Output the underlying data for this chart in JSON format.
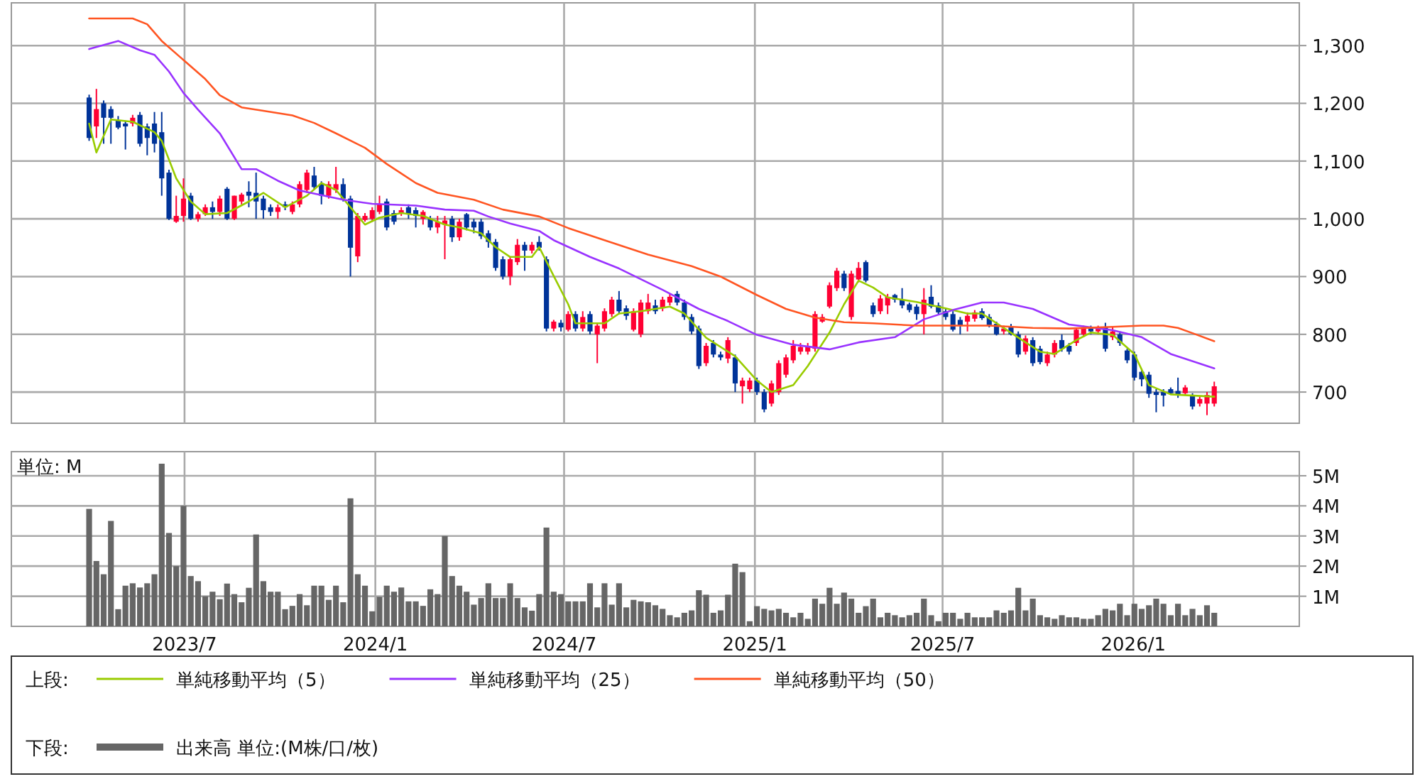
{
  "chart_data": [
    {
      "type": "candlestick",
      "tick_labels": "y",
      "grid": true,
      "legend": "bottom",
      "legend_title": "上段:",
      "xlim": [
        "2023-01-15",
        "2026-06-10"
      ],
      "xticks": [
        {
          "value": "2023-07-01",
          "label": null
        },
        {
          "value": "2024-01-01",
          "label": null
        },
        {
          "value": "2024-07-01",
          "label": null
        },
        {
          "value": "2025-01-01",
          "label": null
        },
        {
          "value": "2025-07-01",
          "label": null
        },
        {
          "value": "2026-01-01",
          "label": null
        }
      ],
      "ylim": [
        646,
        1374
      ],
      "yticks": [
        700,
        800,
        900,
        {
          "value": 1000,
          "label": "1,000"
        },
        {
          "value": 1100,
          "label": "1,100"
        },
        {
          "value": 1200,
          "label": "1,200"
        },
        {
          "value": 1300,
          "label": "1,300"
        }
      ],
      "x": [
        "2023-03-31",
        "2023-04-07",
        "2023-04-14",
        "2023-04-21",
        "2023-04-28",
        "2023-05-05",
        "2023-05-12",
        "2023-05-19",
        "2023-05-26",
        "2023-06-02",
        "2023-06-09",
        "2023-06-16",
        "2023-06-23",
        "2023-06-30",
        "2023-07-07",
        "2023-07-14",
        "2023-07-21",
        "2023-07-28",
        "2023-08-04",
        "2023-08-11",
        "2023-08-18",
        "2023-08-25",
        "2023-09-01",
        "2023-09-08",
        "2023-09-15",
        "2023-09-22",
        "2023-09-29",
        "2023-10-06",
        "2023-10-13",
        "2023-10-20",
        "2023-10-27",
        "2023-11-03",
        "2023-11-10",
        "2023-11-17",
        "2023-11-24",
        "2023-12-01",
        "2023-12-08",
        "2023-12-15",
        "2023-12-22",
        "2023-12-29",
        "2024-01-05",
        "2024-01-12",
        "2024-01-19",
        "2024-01-26",
        "2024-02-02",
        "2024-02-09",
        "2024-02-16",
        "2024-02-23",
        "2024-03-01",
        "2024-03-08",
        "2024-03-15",
        "2024-03-22",
        "2024-03-29",
        "2024-04-05",
        "2024-04-12",
        "2024-04-19",
        "2024-04-26",
        "2024-05-03",
        "2024-05-10",
        "2024-05-17",
        "2024-05-24",
        "2024-05-31",
        "2024-06-07",
        "2024-06-14",
        "2024-06-21",
        "2024-06-28",
        "2024-07-05",
        "2024-07-12",
        "2024-07-19",
        "2024-07-26",
        "2024-08-02",
        "2024-08-09",
        "2024-08-16",
        "2024-08-23",
        "2024-08-30",
        "2024-09-06",
        "2024-09-13",
        "2024-09-20",
        "2024-09-27",
        "2024-10-04",
        "2024-10-11",
        "2024-10-18",
        "2024-10-25",
        "2024-11-01",
        "2024-11-08",
        "2024-11-15",
        "2024-11-22",
        "2024-11-29",
        "2024-12-06",
        "2024-12-13",
        "2024-12-20",
        "2024-12-27",
        "2025-01-03",
        "2025-01-10",
        "2025-01-17",
        "2025-01-24",
        "2025-01-31",
        "2025-02-07",
        "2025-02-14",
        "2025-02-21",
        "2025-02-28",
        "2025-03-07",
        "2025-03-14",
        "2025-03-21",
        "2025-03-28",
        "2025-04-04",
        "2025-04-11",
        "2025-04-18",
        "2025-04-25",
        "2025-05-02",
        "2025-05-09",
        "2025-05-16",
        "2025-05-23",
        "2025-05-30",
        "2025-06-06",
        "2025-06-13",
        "2025-06-20",
        "2025-06-27",
        "2025-07-04",
        "2025-07-11",
        "2025-07-18",
        "2025-07-25",
        "2025-08-01",
        "2025-08-08",
        "2025-08-15",
        "2025-08-22",
        "2025-08-29",
        "2025-09-05",
        "2025-09-12",
        "2025-09-19",
        "2025-09-26",
        "2025-10-03",
        "2025-10-10",
        "2025-10-17",
        "2025-10-24",
        "2025-10-31",
        "2025-11-07",
        "2025-11-14",
        "2025-11-21",
        "2025-11-28",
        "2025-12-05",
        "2025-12-12",
        "2025-12-19",
        "2025-12-26",
        "2026-01-02",
        "2026-01-09",
        "2026-01-16",
        "2026-01-23",
        "2026-01-30",
        "2026-02-06",
        "2026-02-13",
        "2026-02-20",
        "2026-02-27",
        "2026-03-06",
        "2026-03-13",
        "2026-03-20"
      ],
      "ohlc": [
        [
          1210,
          1215,
          1135,
          1140
        ],
        [
          1160,
          1225,
          1140,
          1190
        ],
        [
          1200,
          1205,
          1130,
          1175
        ],
        [
          1190,
          1195,
          1130,
          1175
        ],
        [
          1170,
          1178,
          1155,
          1158
        ],
        [
          1165,
          1170,
          1120,
          1160
        ],
        [
          1165,
          1180,
          1160,
          1175
        ],
        [
          1180,
          1185,
          1125,
          1130
        ],
        [
          1160,
          1165,
          1110,
          1140
        ],
        [
          1165,
          1185,
          1115,
          1130
        ],
        [
          1150,
          1185,
          1040,
          1070
        ],
        [
          1080,
          1085,
          998,
          1000
        ],
        [
          995,
          1040,
          993,
          1005
        ],
        [
          1005,
          1070,
          995,
          1035
        ],
        [
          1040,
          1045,
          998,
          1000
        ],
        [
          1000,
          1012,
          995,
          1008
        ],
        [
          1008,
          1025,
          1005,
          1020
        ],
        [
          1020,
          1030,
          1000,
          1012
        ],
        [
          1012,
          1040,
          1005,
          1035
        ],
        [
          1052,
          1055,
          998,
          1000
        ],
        [
          1000,
          1040,
          998,
          1040
        ],
        [
          1030,
          1045,
          1025,
          1042
        ],
        [
          1047,
          1065,
          1020,
          1040
        ],
        [
          1045,
          1080,
          1000,
          1030
        ],
        [
          1035,
          1040,
          1000,
          1015
        ],
        [
          1020,
          1025,
          1005,
          1012
        ],
        [
          1012,
          1025,
          1000,
          1020
        ],
        [
          1025,
          1030,
          1015,
          1020
        ],
        [
          1012,
          1030,
          1008,
          1025
        ],
        [
          1025,
          1065,
          1020,
          1060
        ],
        [
          1050,
          1085,
          1045,
          1080
        ],
        [
          1075,
          1090,
          1050,
          1055
        ],
        [
          1060,
          1065,
          1025,
          1040
        ],
        [
          1040,
          1065,
          1035,
          1060
        ],
        [
          1050,
          1090,
          1045,
          1060
        ],
        [
          1060,
          1070,
          1030,
          1035
        ],
        [
          1035,
          1040,
          900,
          950
        ],
        [
          935,
          1010,
          925,
          1005
        ],
        [
          998,
          1010,
          995,
          1005
        ],
        [
          1000,
          1020,
          995,
          1015
        ],
        [
          1012,
          1040,
          1008,
          1025
        ],
        [
          1030,
          1035,
          980,
          985
        ],
        [
          1010,
          1015,
          990,
          995
        ],
        [
          1010,
          1020,
          1005,
          1015
        ],
        [
          1020,
          1025,
          1000,
          1008
        ],
        [
          1015,
          1020,
          985,
          1005
        ],
        [
          1000,
          1015,
          990,
          1012
        ],
        [
          1000,
          1005,
          980,
          985
        ],
        [
          985,
          1005,
          975,
          995
        ],
        [
          990,
          1005,
          930,
          997
        ],
        [
          1000,
          1005,
          960,
          968
        ],
        [
          968,
          1000,
          962,
          995
        ],
        [
          1008,
          1010,
          980,
          985
        ],
        [
          995,
          1000,
          975,
          985
        ],
        [
          995,
          1000,
          965,
          970
        ],
        [
          975,
          980,
          950,
          960
        ],
        [
          960,
          965,
          910,
          915
        ],
        [
          930,
          935,
          895,
          900
        ],
        [
          900,
          935,
          885,
          930
        ],
        [
          925,
          965,
          920,
          955
        ],
        [
          955,
          960,
          910,
          945
        ],
        [
          945,
          960,
          940,
          955
        ],
        [
          960,
          970,
          945,
          950
        ],
        [
          930,
          935,
          805,
          810
        ],
        [
          810,
          825,
          805,
          822
        ],
        [
          820,
          825,
          805,
          812
        ],
        [
          808,
          840,
          805,
          835
        ],
        [
          835,
          840,
          805,
          810
        ],
        [
          810,
          840,
          805,
          830
        ],
        [
          835,
          840,
          800,
          805
        ],
        [
          800,
          820,
          750,
          815
        ],
        [
          810,
          845,
          805,
          840
        ],
        [
          835,
          865,
          830,
          860
        ],
        [
          860,
          875,
          835,
          840
        ],
        [
          845,
          850,
          825,
          832
        ],
        [
          808,
          845,
          805,
          840
        ],
        [
          800,
          860,
          795,
          855
        ],
        [
          840,
          870,
          835,
          855
        ],
        [
          850,
          860,
          835,
          840
        ],
        [
          845,
          865,
          840,
          860
        ],
        [
          855,
          870,
          850,
          865
        ],
        [
          870,
          875,
          850,
          855
        ],
        [
          855,
          860,
          825,
          830
        ],
        [
          830,
          835,
          800,
          805
        ],
        [
          810,
          815,
          740,
          745
        ],
        [
          750,
          785,
          745,
          780
        ],
        [
          785,
          790,
          760,
          765
        ],
        [
          765,
          770,
          755,
          760
        ],
        [
          758,
          795,
          750,
          790
        ],
        [
          760,
          765,
          700,
          715
        ],
        [
          710,
          725,
          680,
          720
        ],
        [
          705,
          725,
          700,
          720
        ],
        [
          720,
          725,
          695,
          700
        ],
        [
          700,
          705,
          665,
          670
        ],
        [
          680,
          720,
          675,
          715
        ],
        [
          700,
          755,
          695,
          750
        ],
        [
          730,
          765,
          725,
          760
        ],
        [
          755,
          790,
          750,
          780
        ],
        [
          770,
          785,
          765,
          778
        ],
        [
          770,
          785,
          765,
          780
        ],
        [
          775,
          840,
          770,
          835
        ],
        [
          822,
          835,
          820,
          830
        ],
        [
          848,
          890,
          845,
          885
        ],
        [
          880,
          915,
          875,
          910
        ],
        [
          905,
          910,
          875,
          880
        ],
        [
          830,
          910,
          825,
          905
        ],
        [
          895,
          925,
          890,
          915
        ],
        [
          925,
          928,
          890,
          893
        ],
        [
          850,
          855,
          830,
          835
        ],
        [
          840,
          868,
          835,
          862
        ],
        [
          850,
          870,
          835,
          865
        ],
        [
          868,
          870,
          855,
          860
        ],
        [
          860,
          880,
          845,
          850
        ],
        [
          852,
          855,
          838,
          842
        ],
        [
          848,
          852,
          825,
          835
        ],
        [
          835,
          880,
          800,
          860
        ],
        [
          865,
          885,
          845,
          848
        ],
        [
          850,
          855,
          835,
          838
        ],
        [
          840,
          845,
          825,
          830
        ],
        [
          835,
          840,
          805,
          808
        ],
        [
          825,
          830,
          800,
          815
        ],
        [
          822,
          838,
          805,
          832
        ],
        [
          827,
          842,
          822,
          838
        ],
        [
          840,
          845,
          825,
          828
        ],
        [
          830,
          835,
          812,
          816
        ],
        [
          818,
          822,
          798,
          800
        ],
        [
          805,
          815,
          800,
          810
        ],
        [
          812,
          818,
          798,
          800
        ],
        [
          800,
          805,
          760,
          765
        ],
        [
          770,
          798,
          765,
          793
        ],
        [
          790,
          795,
          745,
          750
        ],
        [
          775,
          780,
          748,
          752
        ],
        [
          750,
          770,
          745,
          765
        ],
        [
          765,
          790,
          760,
          785
        ],
        [
          790,
          800,
          770,
          775
        ],
        [
          780,
          785,
          765,
          770
        ],
        [
          785,
          812,
          780,
          808
        ],
        [
          800,
          815,
          795,
          810
        ],
        [
          810,
          815,
          800,
          805
        ],
        [
          805,
          815,
          800,
          810
        ],
        [
          812,
          820,
          770,
          775
        ],
        [
          795,
          812,
          790,
          805
        ],
        [
          800,
          805,
          780,
          785
        ],
        [
          772,
          775,
          750,
          755
        ],
        [
          765,
          770,
          720,
          725
        ],
        [
          735,
          740,
          710,
          722
        ],
        [
          730,
          735,
          690,
          697
        ],
        [
          700,
          705,
          665,
          695
        ],
        [
          700,
          705,
          675,
          694
        ],
        [
          705,
          708,
          695,
          698
        ],
        [
          702,
          725,
          690,
          695
        ],
        [
          698,
          712,
          695,
          708
        ],
        [
          695,
          698,
          670,
          675
        ],
        [
          680,
          692,
          675,
          688
        ],
        [
          680,
          700,
          660,
          695
        ],
        [
          680,
          718,
          675,
          710
        ]
      ],
      "series": [
        {
          "name": "単純移動平均（5）",
          "color": "#99cc00",
          "type": "line",
          "x": [
            "2023-03-31",
            "2023-04-07",
            "2023-04-21",
            "2023-05-12",
            "2023-06-02",
            "2023-06-09",
            "2023-06-23",
            "2023-07-07",
            "2023-07-21",
            "2023-08-11",
            "2023-09-01",
            "2023-09-15",
            "2023-10-06",
            "2023-10-27",
            "2023-11-10",
            "2023-11-24",
            "2023-12-08",
            "2023-12-22",
            "2024-01-05",
            "2024-01-26",
            "2024-02-16",
            "2024-03-08",
            "2024-03-22",
            "2024-04-12",
            "2024-04-26",
            "2024-05-10",
            "2024-05-31",
            "2024-06-07",
            "2024-06-21",
            "2024-07-05",
            "2024-07-12",
            "2024-08-09",
            "2024-08-23",
            "2024-09-13",
            "2024-10-11",
            "2024-10-25",
            "2024-11-15",
            "2024-12-13",
            "2025-01-03",
            "2025-01-17",
            "2025-02-07",
            "2025-02-21",
            "2025-03-14",
            "2025-03-28",
            "2025-04-11",
            "2025-04-25",
            "2025-05-09",
            "2025-06-06",
            "2025-07-04",
            "2025-07-25",
            "2025-08-08",
            "2025-08-29",
            "2025-09-19",
            "2025-10-03",
            "2025-10-17",
            "2025-11-07",
            "2025-11-21",
            "2025-12-12",
            "2026-01-02",
            "2026-01-16",
            "2026-02-06",
            "2026-03-20"
          ],
          "values": [
            1165,
            1115,
            1172,
            1168,
            1150,
            1135,
            1070,
            1030,
            1008,
            1010,
            1030,
            1045,
            1020,
            1040,
            1062,
            1050,
            1020,
            990,
            1002,
            1010,
            1005,
            990,
            985,
            975,
            951,
            934,
            934,
            951,
            901,
            852,
            819,
            819,
            836,
            840,
            848,
            836,
            794,
            762,
            720,
            700,
            712,
            745,
            803,
            852,
            893,
            881,
            864,
            856,
            845,
            836,
            836,
            811,
            786,
            770,
            766,
            790,
            803,
            799,
            766,
            712,
            696,
            692
          ]
        },
        {
          "name": "単純移動平均（25）",
          "color": "#9933ff",
          "type": "line",
          "x": [
            "2023-03-31",
            "2023-04-28",
            "2023-05-19",
            "2023-06-02",
            "2023-06-16",
            "2023-06-30",
            "2023-07-14",
            "2023-08-04",
            "2023-08-25",
            "2023-09-08",
            "2023-09-29",
            "2023-10-20",
            "2023-11-10",
            "2023-12-01",
            "2023-12-29",
            "2024-02-09",
            "2024-03-08",
            "2024-04-05",
            "2024-04-19",
            "2024-05-10",
            "2024-06-07",
            "2024-06-21",
            "2024-07-26",
            "2024-08-23",
            "2024-10-04",
            "2024-11-08",
            "2024-12-06",
            "2025-01-03",
            "2025-02-07",
            "2025-03-14",
            "2025-04-11",
            "2025-05-16",
            "2025-06-13",
            "2025-07-11",
            "2025-08-08",
            "2025-08-29",
            "2025-09-26",
            "2025-10-31",
            "2025-12-12",
            "2026-01-09",
            "2026-02-06",
            "2026-03-20"
          ],
          "values": [
            1294,
            1308,
            1292,
            1284,
            1255,
            1218,
            1189,
            1148,
            1086,
            1086,
            1066,
            1049,
            1041,
            1033,
            1026,
            1023,
            1016,
            1014,
            1004,
            992,
            979,
            963,
            934,
            914,
            877,
            844,
            823,
            799,
            782,
            774,
            786,
            795,
            826,
            842,
            855,
            855,
            844,
            817,
            807,
            795,
            766,
            741
          ]
        },
        {
          "name": "単純移動平均（50）",
          "color": "#ff5522",
          "type": "line",
          "x": [
            "2023-03-31",
            "2023-05-12",
            "2023-05-26",
            "2023-06-09",
            "2023-06-30",
            "2023-07-21",
            "2023-08-04",
            "2023-08-25",
            "2023-09-15",
            "2023-10-13",
            "2023-11-03",
            "2023-11-24",
            "2023-12-22",
            "2024-01-12",
            "2024-02-09",
            "2024-03-01",
            "2024-04-05",
            "2024-05-03",
            "2024-06-07",
            "2024-07-05",
            "2024-08-09",
            "2024-09-20",
            "2024-11-01",
            "2024-11-29",
            "2025-01-03",
            "2025-01-31",
            "2025-02-28",
            "2025-03-28",
            "2025-04-25",
            "2025-06-06",
            "2025-08-15",
            "2025-09-26",
            "2025-10-31",
            "2025-12-12",
            "2026-01-09",
            "2026-01-30",
            "2026-02-13",
            "2026-02-27",
            "2026-03-20"
          ],
          "values": [
            1347,
            1347,
            1337,
            1308,
            1275,
            1242,
            1214,
            1193,
            1187,
            1179,
            1166,
            1148,
            1123,
            1095,
            1062,
            1045,
            1033,
            1016,
            1004,
            984,
            963,
            938,
            918,
            900,
            868,
            844,
            829,
            821,
            819,
            815,
            815,
            811,
            810,
            813,
            815,
            815,
            811,
            802,
            788
          ]
        }
      ]
    },
    {
      "type": "bar",
      "grid": true,
      "legend": "bottom",
      "legend_title": "下段:",
      "ylabel": "単位: M",
      "xlim": [
        "2023-01-15",
        "2026-06-10"
      ],
      "xticks": [
        {
          "value": "2023-07-01",
          "label": "2023/7"
        },
        {
          "value": "2024-01-01",
          "label": "2024/1"
        },
        {
          "value": "2024-07-01",
          "label": "2024/7"
        },
        {
          "value": "2025-01-01",
          "label": "2025/1"
        },
        {
          "value": "2025-07-01",
          "label": "2025/7"
        },
        {
          "value": "2026-01-01",
          "label": "2026/1"
        }
      ],
      "ylim": [
        0,
        5.8
      ],
      "yticks": [
        {
          "value": 1,
          "label": "1M"
        },
        {
          "value": 2,
          "label": "2M"
        },
        {
          "value": 3,
          "label": "3M"
        },
        {
          "value": 4,
          "label": "4M"
        },
        {
          "value": 5,
          "label": "5M"
        }
      ],
      "x": [
        "2023-03-31",
        "2023-04-07",
        "2023-04-14",
        "2023-04-21",
        "2023-04-28",
        "2023-05-05",
        "2023-05-12",
        "2023-05-19",
        "2023-05-26",
        "2023-06-02",
        "2023-06-09",
        "2023-06-16",
        "2023-06-23",
        "2023-06-30",
        "2023-07-07",
        "2023-07-14",
        "2023-07-21",
        "2023-07-28",
        "2023-08-04",
        "2023-08-11",
        "2023-08-18",
        "2023-08-25",
        "2023-09-01",
        "2023-09-08",
        "2023-09-15",
        "2023-09-22",
        "2023-09-29",
        "2023-10-06",
        "2023-10-13",
        "2023-10-20",
        "2023-10-27",
        "2023-11-03",
        "2023-11-10",
        "2023-11-17",
        "2023-11-24",
        "2023-12-01",
        "2023-12-08",
        "2023-12-15",
        "2023-12-22",
        "2023-12-29",
        "2024-01-05",
        "2024-01-12",
        "2024-01-19",
        "2024-01-26",
        "2024-02-02",
        "2024-02-09",
        "2024-02-16",
        "2024-02-23",
        "2024-03-01",
        "2024-03-08",
        "2024-03-15",
        "2024-03-22",
        "2024-03-29",
        "2024-04-05",
        "2024-04-12",
        "2024-04-19",
        "2024-04-26",
        "2024-05-03",
        "2024-05-10",
        "2024-05-17",
        "2024-05-24",
        "2024-05-31",
        "2024-06-07",
        "2024-06-14",
        "2024-06-21",
        "2024-06-28",
        "2024-07-05",
        "2024-07-12",
        "2024-07-19",
        "2024-07-26",
        "2024-08-02",
        "2024-08-09",
        "2024-08-16",
        "2024-08-23",
        "2024-08-30",
        "2024-09-06",
        "2024-09-13",
        "2024-09-20",
        "2024-09-27",
        "2024-10-04",
        "2024-10-11",
        "2024-10-18",
        "2024-10-25",
        "2024-11-01",
        "2024-11-08",
        "2024-11-15",
        "2024-11-22",
        "2024-11-29",
        "2024-12-06",
        "2024-12-13",
        "2024-12-20",
        "2024-12-27",
        "2025-01-03",
        "2025-01-10",
        "2025-01-17",
        "2025-01-24",
        "2025-01-31",
        "2025-02-07",
        "2025-02-14",
        "2025-02-21",
        "2025-02-28",
        "2025-03-07",
        "2025-03-14",
        "2025-03-21",
        "2025-03-28",
        "2025-04-04",
        "2025-04-11",
        "2025-04-18",
        "2025-04-25",
        "2025-05-02",
        "2025-05-09",
        "2025-05-16",
        "2025-05-23",
        "2025-05-30",
        "2025-06-06",
        "2025-06-13",
        "2025-06-20",
        "2025-06-27",
        "2025-07-04",
        "2025-07-11",
        "2025-07-18",
        "2025-07-25",
        "2025-08-01",
        "2025-08-08",
        "2025-08-15",
        "2025-08-22",
        "2025-08-29",
        "2025-09-05",
        "2025-09-12",
        "2025-09-19",
        "2025-09-26",
        "2025-10-03",
        "2025-10-10",
        "2025-10-17",
        "2025-10-24",
        "2025-10-31",
        "2025-11-07",
        "2025-11-14",
        "2025-11-21",
        "2025-11-28",
        "2025-12-05",
        "2025-12-12",
        "2025-12-19",
        "2025-12-26",
        "2026-01-02",
        "2026-01-09",
        "2026-01-16",
        "2026-01-23",
        "2026-01-30",
        "2026-02-06",
        "2026-02-13",
        "2026-02-20",
        "2026-02-27",
        "2026-03-06",
        "2026-03-13",
        "2026-03-20"
      ],
      "series": [
        {
          "name": "出来高 単位:(M株/口/枚)",
          "color": "#666666",
          "values": [
            3.9,
            2.17,
            1.73,
            3.5,
            0.57,
            1.35,
            1.43,
            1.29,
            1.43,
            1.73,
            5.4,
            3.1,
            2.0,
            4.0,
            1.67,
            1.5,
            1.0,
            1.15,
            0.9,
            1.42,
            1.07,
            0.8,
            1.28,
            3.05,
            1.5,
            1.15,
            1.15,
            0.57,
            0.68,
            1.07,
            0.7,
            1.35,
            1.35,
            0.88,
            1.35,
            0.8,
            4.25,
            1.73,
            1.35,
            0.5,
            0.98,
            1.35,
            1.15,
            1.29,
            0.83,
            0.83,
            0.68,
            1.23,
            1.07,
            3.0,
            1.67,
            1.35,
            1.15,
            0.72,
            0.94,
            1.43,
            0.94,
            0.94,
            1.43,
            0.94,
            0.63,
            0.52,
            1.07,
            3.28,
            1.15,
            1.07,
            0.83,
            0.83,
            0.83,
            1.43,
            0.63,
            1.43,
            0.72,
            1.43,
            0.63,
            0.88,
            0.83,
            0.8,
            0.7,
            0.58,
            0.37,
            0.3,
            0.45,
            0.53,
            1.2,
            1.05,
            0.45,
            0.53,
            1.05,
            2.08,
            1.8,
            0.17,
            0.67,
            0.58,
            0.53,
            0.58,
            0.45,
            0.3,
            0.45,
            0.25,
            0.92,
            0.75,
            1.28,
            0.75,
            1.12,
            0.92,
            0.45,
            0.67,
            0.92,
            0.3,
            0.45,
            0.37,
            0.3,
            0.37,
            0.45,
            0.92,
            0.37,
            0.17,
            0.45,
            0.45,
            0.25,
            0.45,
            0.3,
            0.3,
            0.3,
            0.53,
            0.45,
            0.53,
            1.28,
            0.53,
            0.92,
            0.37,
            0.3,
            0.25,
            0.37,
            0.3,
            0.3,
            0.25,
            0.25,
            0.37,
            0.58,
            0.53,
            0.75,
            0.37,
            0.75,
            0.58,
            0.7,
            0.92,
            0.75,
            0.37,
            0.75,
            0.37,
            0.58,
            0.37,
            0.7,
            0.45
          ]
        }
      ]
    }
  ]
}
